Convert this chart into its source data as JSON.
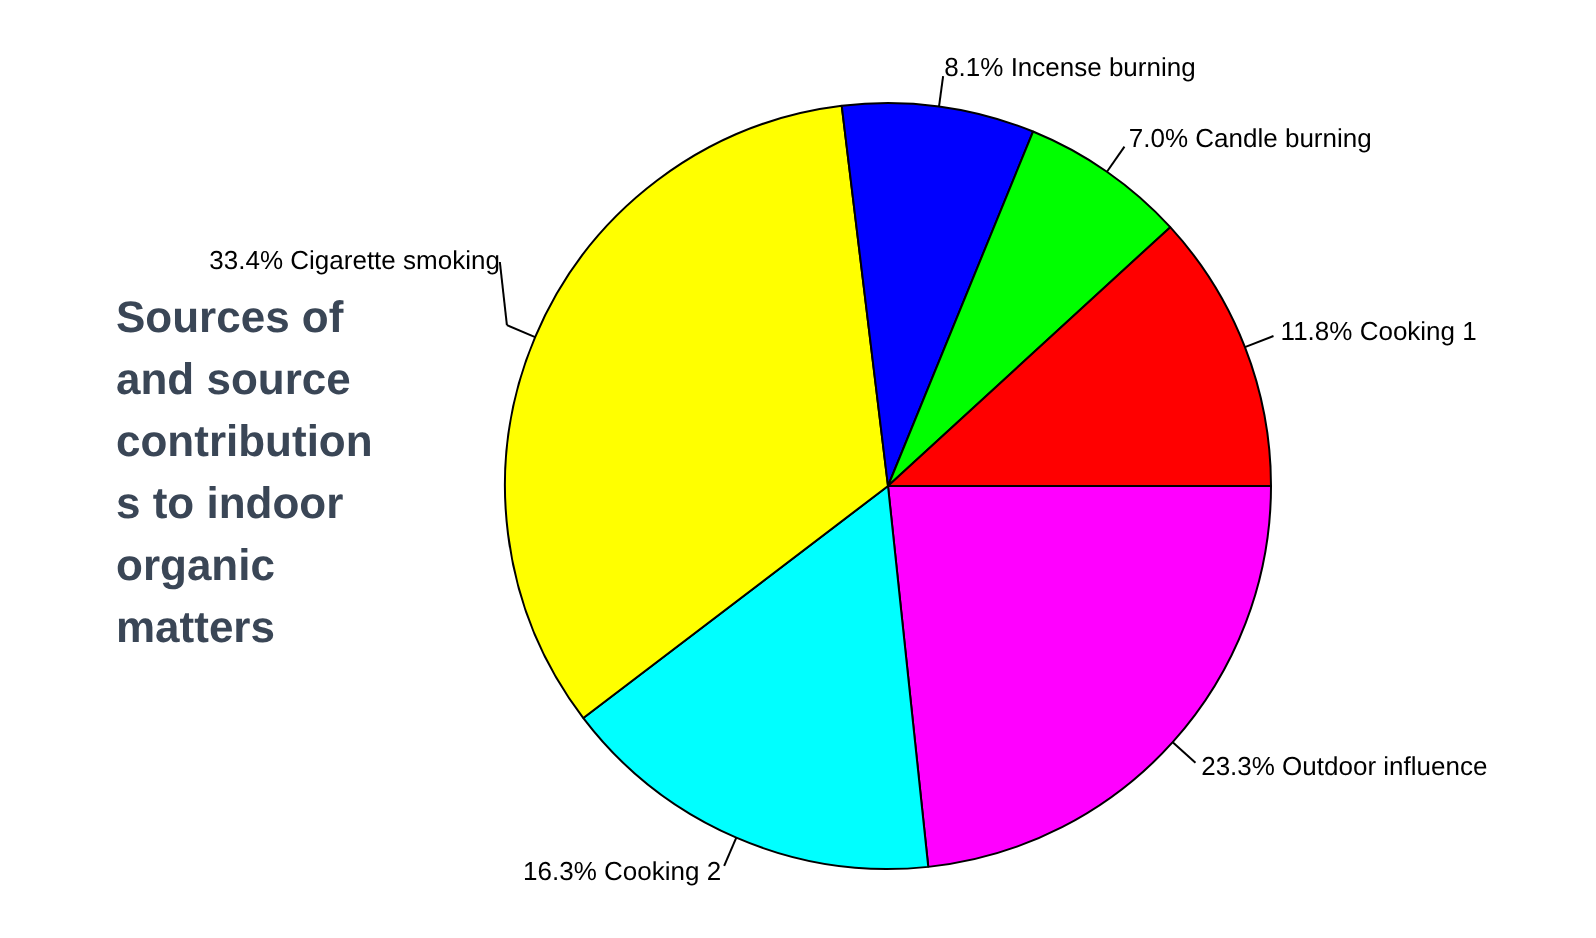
{
  "chart_data": {
    "type": "pie",
    "title": "Sources of and source contributions to indoor organic matters",
    "categories": [
      "Outdoor influence",
      "Cooking 2",
      "Cigarette smoking",
      "Incense burning",
      "Candle burning",
      "Cooking 1"
    ],
    "values": [
      23.3,
      16.3,
      33.4,
      8.1,
      7.0,
      11.8
    ],
    "colors": [
      "#ff00ff",
      "#00ffff",
      "#ffff00",
      "#0000ff",
      "#00ff00",
      "#ff0000"
    ],
    "value_labels": [
      "23.3%",
      "16.3%",
      "33.4%",
      "8.1%",
      "7.0%",
      "11.8%"
    ],
    "legend": false
  }
}
